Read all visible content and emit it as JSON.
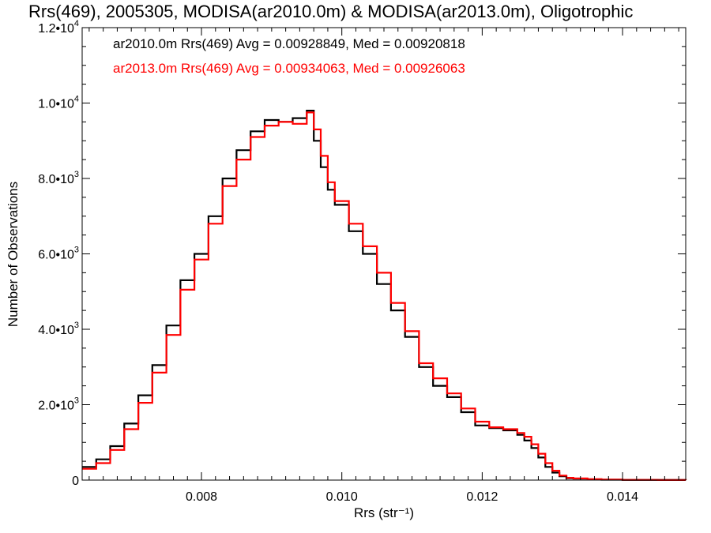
{
  "chart_data": {
    "type": "line",
    "title": "Rrs(469), 2005305, MODISA(ar2010.0m) & MODISA(ar2013.0m), Oligotrophic",
    "xlabel": "Rrs (str⁻¹)",
    "ylabel": "Number of Observations",
    "xlim": [
      0.0063,
      0.0149
    ],
    "ylim": [
      0,
      12000
    ],
    "grid": false,
    "legend_position": "top-left",
    "x_ticks": [
      {
        "value": 0.008,
        "label": "0.008"
      },
      {
        "value": 0.01,
        "label": "0.010"
      },
      {
        "value": 0.012,
        "label": "0.012"
      },
      {
        "value": 0.014,
        "label": "0.014"
      }
    ],
    "y_ticks": [
      {
        "value": 0,
        "mant": "0",
        "exp": ""
      },
      {
        "value": 2000,
        "mant": "2.0•10",
        "exp": "3"
      },
      {
        "value": 4000,
        "mant": "4.0•10",
        "exp": "3"
      },
      {
        "value": 6000,
        "mant": "6.0•10",
        "exp": "3"
      },
      {
        "value": 8000,
        "mant": "8.0•10",
        "exp": "3"
      },
      {
        "value": 10000,
        "mant": "1.0•10",
        "exp": "4"
      },
      {
        "value": 12000,
        "mant": "1.2•10",
        "exp": "4"
      }
    ],
    "series": [
      {
        "name": "ar2010.0m",
        "legend_text": "ar2010.0m Rrs(469) Avg = 0.00928849, Med = 0.00920818",
        "color": "#000000",
        "x": [
          0.0063,
          0.0065,
          0.0067,
          0.0069,
          0.0071,
          0.0073,
          0.0075,
          0.0077,
          0.0079,
          0.0081,
          0.0083,
          0.0085,
          0.0087,
          0.0089,
          0.0091,
          0.0093,
          0.0095,
          0.0096,
          0.0097,
          0.0098,
          0.0099,
          0.0101,
          0.0103,
          0.0105,
          0.0107,
          0.0109,
          0.0111,
          0.0113,
          0.0115,
          0.0117,
          0.0119,
          0.0121,
          0.0123,
          0.0125,
          0.0126,
          0.0127,
          0.0128,
          0.0129,
          0.013,
          0.0131,
          0.0132,
          0.0133,
          0.0135,
          0.0137,
          0.014,
          0.0145,
          0.0149
        ],
        "y": [
          350,
          550,
          900,
          1500,
          2250,
          3050,
          4100,
          5300,
          6000,
          7000,
          8000,
          8750,
          9250,
          9550,
          9500,
          9600,
          9800,
          9000,
          8300,
          7700,
          7300,
          6600,
          6000,
          5200,
          4500,
          3800,
          3000,
          2500,
          2200,
          1800,
          1450,
          1380,
          1320,
          1200,
          1050,
          850,
          600,
          350,
          200,
          100,
          50,
          40,
          20,
          10,
          5,
          2,
          0
        ]
      },
      {
        "name": "ar2013.0m",
        "legend_text": "ar2013.0m Rrs(469) Avg = 0.00934063, Med = 0.00926063",
        "color": "#ff0000",
        "x": [
          0.0063,
          0.0065,
          0.0067,
          0.0069,
          0.0071,
          0.0073,
          0.0075,
          0.0077,
          0.0079,
          0.0081,
          0.0083,
          0.0085,
          0.0087,
          0.0089,
          0.0091,
          0.0093,
          0.0095,
          0.0096,
          0.0097,
          0.0098,
          0.0099,
          0.0101,
          0.0103,
          0.0105,
          0.0107,
          0.0109,
          0.0111,
          0.0113,
          0.0115,
          0.0117,
          0.0119,
          0.0121,
          0.0123,
          0.0125,
          0.0126,
          0.0127,
          0.0128,
          0.0129,
          0.013,
          0.0131,
          0.0132,
          0.0133,
          0.0135,
          0.0137,
          0.014,
          0.0145,
          0.0149
        ],
        "y": [
          300,
          450,
          800,
          1350,
          2050,
          2850,
          3850,
          5050,
          5850,
          6800,
          7800,
          8500,
          9100,
          9400,
          9500,
          9450,
          9750,
          9300,
          8600,
          7900,
          7400,
          6800,
          6200,
          5500,
          4700,
          3950,
          3100,
          2700,
          2300,
          1900,
          1550,
          1400,
          1350,
          1250,
          1150,
          950,
          700,
          450,
          250,
          120,
          60,
          45,
          25,
          12,
          6,
          3,
          0
        ]
      }
    ]
  }
}
